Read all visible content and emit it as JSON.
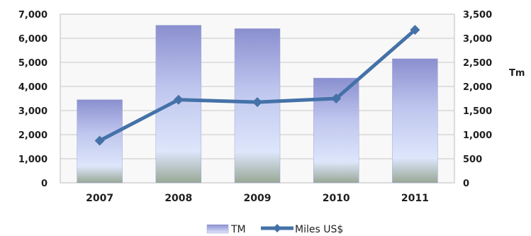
{
  "chart_data": {
    "type": "bar",
    "categories": [
      "2007",
      "2008",
      "2009",
      "2010",
      "2011"
    ],
    "series": [
      {
        "name": "TM",
        "type": "bar",
        "axis": "right",
        "values": [
          1725,
          3270,
          3200,
          2175,
          2575
        ],
        "color": "#9a9fd6"
      },
      {
        "name": "Miles US$",
        "type": "line",
        "axis": "left",
        "values": [
          1750,
          3450,
          3350,
          3500,
          6350
        ],
        "color": "#4472a8"
      }
    ],
    "y_left": {
      "min": 0,
      "max": 7000,
      "step": 1000,
      "ticks": [
        "0",
        "1,000",
        "2,000",
        "3,000",
        "4,000",
        "5,000",
        "6,000",
        "7,000"
      ]
    },
    "y_right": {
      "min": 0,
      "max": 3500,
      "step": 500,
      "ticks": [
        "0",
        "500",
        "1,000",
        "1,500",
        "2,000",
        "2,500",
        "3,000",
        "3,500"
      ],
      "label": "Tm"
    },
    "grid": true,
    "legend": {
      "position": "bottom",
      "items": [
        "TM",
        "Miles US$"
      ]
    }
  }
}
